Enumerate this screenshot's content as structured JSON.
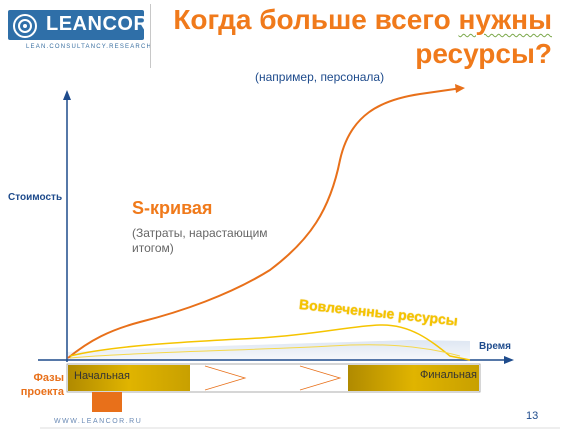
{
  "header": {
    "logo_text": "LEANCOR",
    "logo_tagline": "LEAN.CONSULTANCY.RESEARCH",
    "title_line1_pre": "Когда больше всего ",
    "title_line1_underlined": "нужны",
    "title_line2": "ресурсы?",
    "subtitle": "(например, персонала)"
  },
  "diagram": {
    "y_axis_label": "Стоимость",
    "x_axis_label": "Время",
    "s_curve_title": "S-кривая",
    "s_curve_note": "(Затраты, нарастающим итогом)",
    "resources_label": "Вовлеченные ресурсы",
    "phases_label_line1": "Фазы",
    "phases_label_line2": "проекта",
    "phase_start": "Начальная",
    "phase_final": "Финальная"
  },
  "colors": {
    "brand_blue": "#2f6fa8",
    "title_orange": "#f07a1b",
    "axis_blue": "#1e4b8c",
    "resource_yellow": "#f5c400",
    "phase_gold": "#c8a000"
  },
  "footer": {
    "url": "WWW.LEANCOR.RU",
    "page_number": "13"
  }
}
